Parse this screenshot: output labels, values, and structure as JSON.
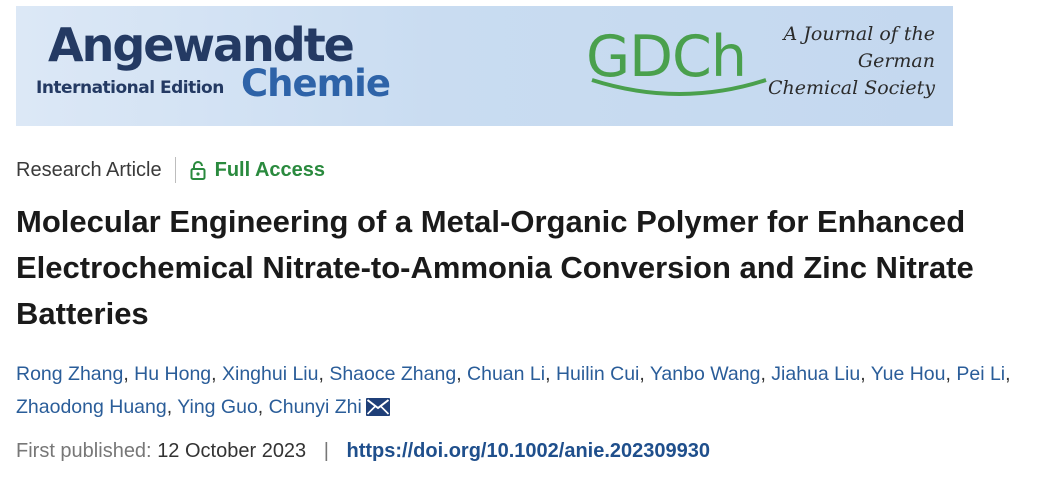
{
  "banner": {
    "journal_name": "Angewandte",
    "edition": "International Edition",
    "subtitle": "Chemie",
    "society_logo_text": "GDCh",
    "society_tagline": [
      "A Journal of the",
      "German",
      "Chemical Society"
    ],
    "colors": {
      "navy": "#243a63",
      "blue": "#2e63a8",
      "green": "#4aa04d",
      "banner_bg": "#c9dcf1"
    }
  },
  "article": {
    "type": "Research Article",
    "access": "Full Access",
    "access_icon": "lock-icon",
    "title": "Molecular Engineering of a Metal-Organic Polymer for Enhanced Electrochemical Nitrate-to-Ammonia Conversion and Zinc Nitrate Batteries",
    "authors": [
      "Rong Zhang",
      "Hu Hong",
      "Xinghui Liu",
      "Shaoce Zhang",
      "Chuan Li",
      "Huilin Cui",
      "Yanbo Wang",
      "Jiahua Liu",
      "Yue Hou",
      "Pei Li",
      "Zhaodong Huang",
      "Ying Guo",
      "Chunyi Zhi"
    ],
    "corresponding_icon": "envelope-icon",
    "first_published_label": "First published:",
    "first_published_date": "12 October 2023",
    "separator": "|",
    "doi": "https://doi.org/10.1002/anie.202309930",
    "colors": {
      "access_green": "#2a8a3e",
      "author_link": "#2a5d99",
      "doi_link": "#1f4f8c"
    }
  }
}
